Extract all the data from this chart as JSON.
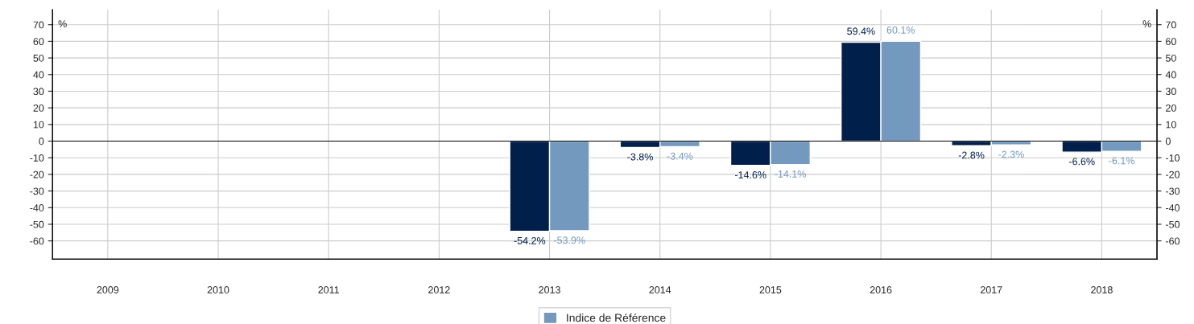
{
  "chart_data": {
    "type": "bar",
    "categories": [
      "2009",
      "2010",
      "2011",
      "2012",
      "2013",
      "2014",
      "2015",
      "2016",
      "2017",
      "2018"
    ],
    "series": [
      {
        "color": "#001f4b",
        "values": [
          null,
          null,
          null,
          null,
          -54.2,
          -3.8,
          -14.6,
          59.4,
          -2.8,
          -6.6
        ],
        "value_labels": [
          null,
          null,
          null,
          null,
          "-54.2%",
          "-3.8%",
          "-14.6%",
          "59.4%",
          "-2.8%",
          "-6.6%"
        ]
      },
      {
        "name": "Indice de Référence",
        "color": "#7399be",
        "values": [
          null,
          null,
          null,
          null,
          -53.9,
          -3.4,
          -14.1,
          60.1,
          -2.3,
          -6.1
        ],
        "value_labels": [
          null,
          null,
          null,
          null,
          "-53.9%",
          "-3.4%",
          "-14.1%",
          "60.1%",
          "-2.3%",
          "-6.1%"
        ]
      }
    ],
    "ylabel": "%",
    "y2label": "%",
    "ylim": [
      -71,
      79
    ],
    "yticks": [
      -60,
      -50,
      -40,
      -30,
      -20,
      -10,
      0,
      10,
      20,
      30,
      40,
      50,
      60,
      70
    ],
    "y2lim": [
      -71,
      79
    ],
    "y2ticks": [
      -60,
      -50,
      -40,
      -30,
      -20,
      -10,
      0,
      10,
      20,
      30,
      40,
      50,
      60,
      70
    ],
    "ref_lines": [
      {
        "axis": "y",
        "value": 0,
        "color": "#000000"
      }
    ],
    "grid": true,
    "legend": "bottom"
  }
}
